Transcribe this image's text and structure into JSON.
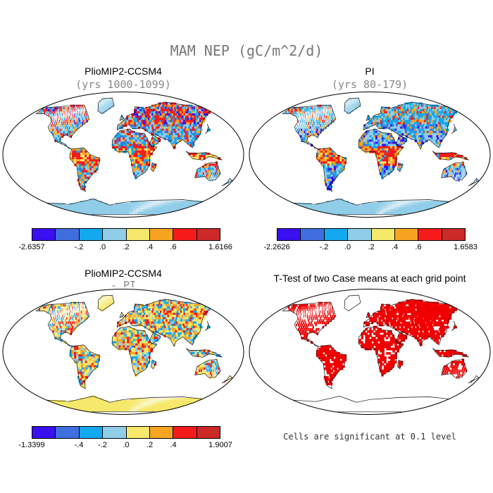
{
  "title": "MAM NEP (gC/m^2/d)",
  "palette": [
    "#3a10f0",
    "#3f6ee0",
    "#14a8ef",
    "#90cde8",
    "#f5e86a",
    "#f7a521",
    "#f51b1b",
    "#cc2929"
  ],
  "significance_color": "#f00000",
  "panels": [
    {
      "title": "PlioMIP2-CCSM4",
      "subtitle": "(yrs 1000-1099)",
      "colorbar": {
        "min_label": "-2.6357",
        "max_label": "1.6166",
        "tick_labels": [
          "-.2",
          ".0",
          ".2",
          ".4",
          ".6"
        ]
      }
    },
    {
      "title": "PI",
      "subtitle": "(yrs 80-179)",
      "colorbar": {
        "min_label": "-2.2626",
        "max_label": "1.6583",
        "tick_labels": [
          "-.2",
          ".0",
          ".2",
          ".4",
          ".6"
        ]
      }
    },
    {
      "title": "PlioMIP2-CCSM4",
      "subtitle": "- PI",
      "colorbar": {
        "min_label": "-1.3399",
        "max_label": "1.9007",
        "tick_labels": [
          "-.4",
          "-.2",
          ".0",
          ".2",
          ".4"
        ]
      }
    },
    {
      "title": "T-Test of two Case means at each grid point",
      "note": "Cells are significant at 0.1 level"
    }
  ]
}
